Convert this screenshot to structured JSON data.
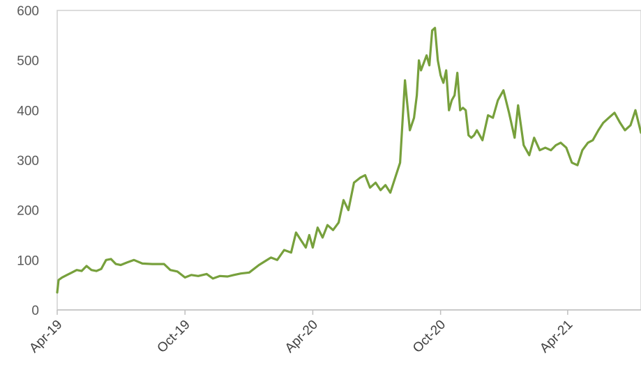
{
  "chart_data": {
    "type": "line",
    "title": "",
    "xlabel": "",
    "ylabel": "",
    "ylim": [
      0,
      600
    ],
    "yticks": [
      0,
      100,
      200,
      300,
      400,
      500,
      600
    ],
    "xlim": [
      "2019-04-01",
      "2021-07-15"
    ],
    "xticks": [
      {
        "date": "2019-04-01",
        "label": "Apr-19"
      },
      {
        "date": "2019-10-01",
        "label": "Oct-19"
      },
      {
        "date": "2020-04-01",
        "label": "Apr-20"
      },
      {
        "date": "2020-10-01",
        "label": "Oct-20"
      },
      {
        "date": "2021-04-01",
        "label": "Apr-21"
      }
    ],
    "grid": false,
    "legend": "none",
    "colors": {
      "line": "#77A03C",
      "axis": "#BFBFBF",
      "frame": "#D0D0D0"
    },
    "series": [
      {
        "x": [
          "2019-04-01",
          "2019-04-03",
          "2019-04-08",
          "2019-04-15",
          "2019-04-22",
          "2019-04-29",
          "2019-05-06",
          "2019-05-13",
          "2019-05-20",
          "2019-05-27",
          "2019-06-03",
          "2019-06-10",
          "2019-06-17",
          "2019-06-24",
          "2019-07-01",
          "2019-07-10",
          "2019-07-20",
          "2019-08-01",
          "2019-08-15",
          "2019-09-01",
          "2019-09-10",
          "2019-09-20",
          "2019-10-01",
          "2019-10-10",
          "2019-10-20",
          "2019-11-01",
          "2019-11-10",
          "2019-11-20",
          "2019-12-01",
          "2019-12-10",
          "2019-12-20",
          "2020-01-01",
          "2020-01-15",
          "2020-02-01",
          "2020-02-10",
          "2020-02-20",
          "2020-03-01",
          "2020-03-08",
          "2020-03-15",
          "2020-03-22",
          "2020-03-27",
          "2020-04-01",
          "2020-04-08",
          "2020-04-15",
          "2020-04-22",
          "2020-04-30",
          "2020-05-08",
          "2020-05-15",
          "2020-05-22",
          "2020-05-30",
          "2020-06-08",
          "2020-06-15",
          "2020-06-22",
          "2020-06-30",
          "2020-07-07",
          "2020-07-14",
          "2020-07-21",
          "2020-07-28",
          "2020-08-04",
          "2020-08-11",
          "2020-08-18",
          "2020-08-24",
          "2020-08-28",
          "2020-08-31",
          "2020-09-03",
          "2020-09-07",
          "2020-09-11",
          "2020-09-15",
          "2020-09-19",
          "2020-09-23",
          "2020-09-27",
          "2020-10-01",
          "2020-10-05",
          "2020-10-09",
          "2020-10-13",
          "2020-10-17",
          "2020-10-21",
          "2020-10-25",
          "2020-10-29",
          "2020-11-02",
          "2020-11-06",
          "2020-11-10",
          "2020-11-14",
          "2020-11-18",
          "2020-11-22",
          "2020-11-30",
          "2020-12-08",
          "2020-12-15",
          "2020-12-22",
          "2020-12-30",
          "2021-01-07",
          "2021-01-15",
          "2021-01-20",
          "2021-01-28",
          "2021-02-05",
          "2021-02-12",
          "2021-02-20",
          "2021-02-28",
          "2021-03-08",
          "2021-03-15",
          "2021-03-22",
          "2021-03-30",
          "2021-04-07",
          "2021-04-15",
          "2021-04-22",
          "2021-04-30",
          "2021-05-07",
          "2021-05-15",
          "2021-05-22",
          "2021-05-30",
          "2021-06-07",
          "2021-06-15",
          "2021-06-22",
          "2021-06-30",
          "2021-07-07",
          "2021-07-15"
        ],
        "y": [
          35,
          60,
          65,
          70,
          75,
          80,
          78,
          88,
          80,
          78,
          82,
          100,
          102,
          92,
          90,
          95,
          100,
          93,
          92,
          92,
          80,
          77,
          65,
          70,
          68,
          72,
          63,
          68,
          67,
          70,
          73,
          75,
          90,
          105,
          100,
          120,
          115,
          155,
          140,
          125,
          150,
          125,
          165,
          145,
          170,
          160,
          175,
          220,
          200,
          255,
          265,
          270,
          245,
          255,
          240,
          250,
          235,
          265,
          295,
          460,
          360,
          385,
          430,
          500,
          480,
          495,
          510,
          490,
          560,
          565,
          500,
          470,
          455,
          480,
          400,
          420,
          430,
          475,
          400,
          405,
          400,
          350,
          345,
          350,
          360,
          340,
          390,
          385,
          420,
          440,
          395,
          345,
          410,
          330,
          310,
          345,
          320,
          325,
          320,
          330,
          335,
          325,
          295,
          290,
          320,
          335,
          340,
          360,
          375,
          385,
          395,
          375,
          360,
          370,
          400,
          355
        ]
      }
    ]
  }
}
